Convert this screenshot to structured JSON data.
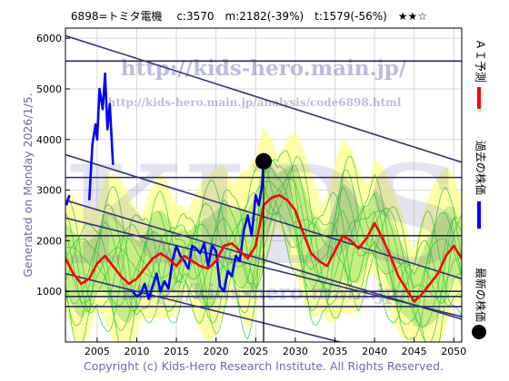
{
  "header": {
    "title_line": "6898=トミタ電機　 c:3570　m:2182(-39%)　t:1579(-56%)　★★☆"
  },
  "watermarks": {
    "url_main": "http://kids-hero.main.jp/",
    "url_sub": "http://kids-hero.main.jp/analysis/code6898.html",
    "logo": "KIDS"
  },
  "side_text": {
    "generated": "Generated on Monday 2026/1/5."
  },
  "legend": {
    "ai_label": "ＡＩ予測",
    "past_label": "過去の株価",
    "latest_label": "最新の株価",
    "colors": {
      "ai": "#ff0000",
      "past": "#0000ff",
      "latest": "#000000",
      "band_green": "#33cc33",
      "band_yellow": "#ffff99"
    }
  },
  "footer": {
    "copyright": "Copyright (c) Kids-Hero Research Institute. All Rights Reserved."
  },
  "chart_data": {
    "type": "line",
    "xlim": [
      2001,
      2051
    ],
    "ylim": [
      0,
      6200
    ],
    "x_ticks": [
      2005,
      2010,
      2015,
      2020,
      2025,
      2030,
      2035,
      2040,
      2045,
      2050
    ],
    "y_ticks": [
      1000,
      2000,
      3000,
      4000,
      5000,
      6000
    ],
    "grid": true,
    "horizontal_levels": [
      5550,
      3250,
      2100,
      1000,
      900,
      700
    ],
    "trend_channels": [
      {
        "x": [
          2001,
          2051
        ],
        "y": [
          6050,
          3550
        ]
      },
      {
        "x": [
          2001,
          2051
        ],
        "y": [
          3700,
          1250
        ]
      },
      {
        "x": [
          2001,
          2051
        ],
        "y": [
          2800,
          450
        ]
      },
      {
        "x": [
          2001,
          2051
        ],
        "y": [
          2450,
          500
        ]
      },
      {
        "x": [
          2001,
          2051
        ],
        "y": [
          1350,
          -600
        ]
      }
    ],
    "past_price": {
      "name": "過去の株価",
      "x": [
        2001.1,
        2001.5,
        2002,
        2003,
        2003.6,
        2004,
        2004.4,
        2004.8,
        2005,
        2005.3,
        2005.7,
        2006,
        2006.3,
        2006.6,
        2007,
        2008,
        2009,
        2009.5,
        2010,
        2010.5,
        2011,
        2011.5,
        2012,
        2012.5,
        2013,
        2013.5,
        2014,
        2014.5,
        2015,
        2015.5,
        2016,
        2016.5,
        2017,
        2017.5,
        2018,
        2018.5,
        2019,
        2019.5,
        2020,
        2020.5,
        2021,
        2021.5,
        2022,
        2022.5,
        2023,
        2023.5,
        2024,
        2024.5,
        2025,
        2025.4,
        2025.8,
        2026
      ],
      "y": [
        2700,
        2900,
        null,
        null,
        null,
        2800,
        3900,
        4300,
        4000,
        5000,
        4600,
        5300,
        4200,
        4700,
        3500,
        null,
        null,
        1000,
        900,
        950,
        1150,
        850,
        1100,
        1350,
        1000,
        1200,
        1050,
        1600,
        1900,
        1700,
        1600,
        1450,
        1900,
        1850,
        1750,
        1950,
        1500,
        1900,
        1800,
        1100,
        1000,
        1400,
        1300,
        1700,
        1600,
        2200,
        2500,
        2100,
        2900,
        2700,
        3100,
        3570
      ]
    },
    "ai_forecast": {
      "name": "ＡＩ予測",
      "x": [
        2001,
        2002,
        2003,
        2004,
        2005,
        2006,
        2007,
        2008,
        2009,
        2010,
        2011,
        2012,
        2013,
        2014,
        2015,
        2016,
        2017,
        2018,
        2019,
        2020,
        2021,
        2022,
        2023,
        2024,
        2025,
        2026,
        2027,
        2028,
        2029,
        2030,
        2031,
        2032,
        2033,
        2034,
        2035,
        2036,
        2037,
        2038,
        2039,
        2040,
        2041,
        2042,
        2043,
        2044,
        2045,
        2046,
        2047,
        2048,
        2049,
        2050,
        2051
      ],
      "y": [
        1650,
        1350,
        1150,
        1250,
        1550,
        1700,
        1500,
        1300,
        1150,
        1250,
        1450,
        1650,
        1750,
        1650,
        1500,
        1700,
        1600,
        1500,
        1450,
        1600,
        1900,
        1950,
        1800,
        1650,
        1900,
        2700,
        2850,
        2900,
        2800,
        2600,
        2150,
        1750,
        1600,
        1500,
        1800,
        2100,
        2000,
        1850,
        2050,
        2350,
        2050,
        1700,
        1300,
        1050,
        800,
        950,
        1150,
        1350,
        1700,
        1900,
        1650
      ]
    },
    "latest_price": {
      "name": "最新の株価",
      "x": 2026,
      "y": 3570
    }
  }
}
